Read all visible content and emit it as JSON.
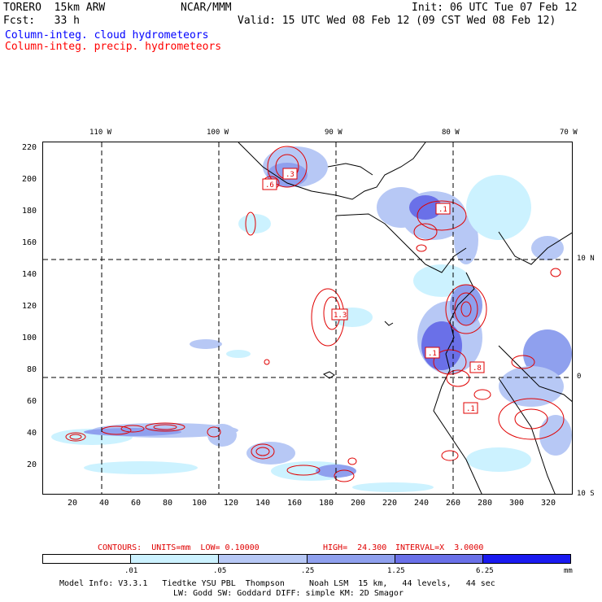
{
  "header": {
    "model": "TORERO  15km ARW",
    "org": "NCAR/MMM",
    "init": "Init: 06 UTC Tue 07 Feb 12",
    "fcst": "Fcst:   33 h",
    "valid": "Valid: 15 UTC Wed 08 Feb 12 (09 CST Wed 08 Feb 12)"
  },
  "fields": {
    "cloud": "Column-integ. cloud hydrometeors",
    "precip": "Column-integ. precip. hydrometeors"
  },
  "colors": {
    "cloud_title": "#0000ff",
    "precip_title": "#ff0000",
    "contour": "#e00000",
    "shades": [
      "#ffffff",
      "#ccf2ff",
      "#b7c8f5",
      "#8fa0ee",
      "#6a70e8",
      "#4848ee",
      "#1a1af0"
    ]
  },
  "map": {
    "lon_labels": [
      "110 W",
      "100 W",
      "90 W",
      "80 W",
      "70 W"
    ],
    "lat_labels": [
      "10 N",
      "0",
      "10 S"
    ],
    "y_ticks": [
      "220",
      "200",
      "180",
      "160",
      "140",
      "120",
      "100",
      "80",
      "60",
      "40",
      "20"
    ],
    "x_ticks": [
      "20",
      "40",
      "60",
      "80",
      "100",
      "120",
      "140",
      "160",
      "180",
      "200",
      "220",
      "240",
      "260",
      "280",
      "300",
      "320"
    ],
    "box_labels": [
      ".6",
      ".3",
      ".1",
      "1.3",
      ".1",
      ".8",
      ".1"
    ]
  },
  "contour_info": {
    "units_label": "CONTOURS:  UNITS=mm  LOW= 0.10000",
    "high": "HIGH=  24.300",
    "interval": "INTERVAL=X  3.0000"
  },
  "legend": {
    "ticks": [
      ".01",
      ".05",
      ".25",
      "1.25",
      "6.25"
    ],
    "units": "mm"
  },
  "footer": {
    "line1": "Model Info: V3.3.1   Tiedtke YSU PBL  Thompson     Noah LSM  15 km,   44 levels,   44 sec",
    "line2": "LW: Godd SW: Goddard DIFF: simple KM: 2D Smagor"
  }
}
